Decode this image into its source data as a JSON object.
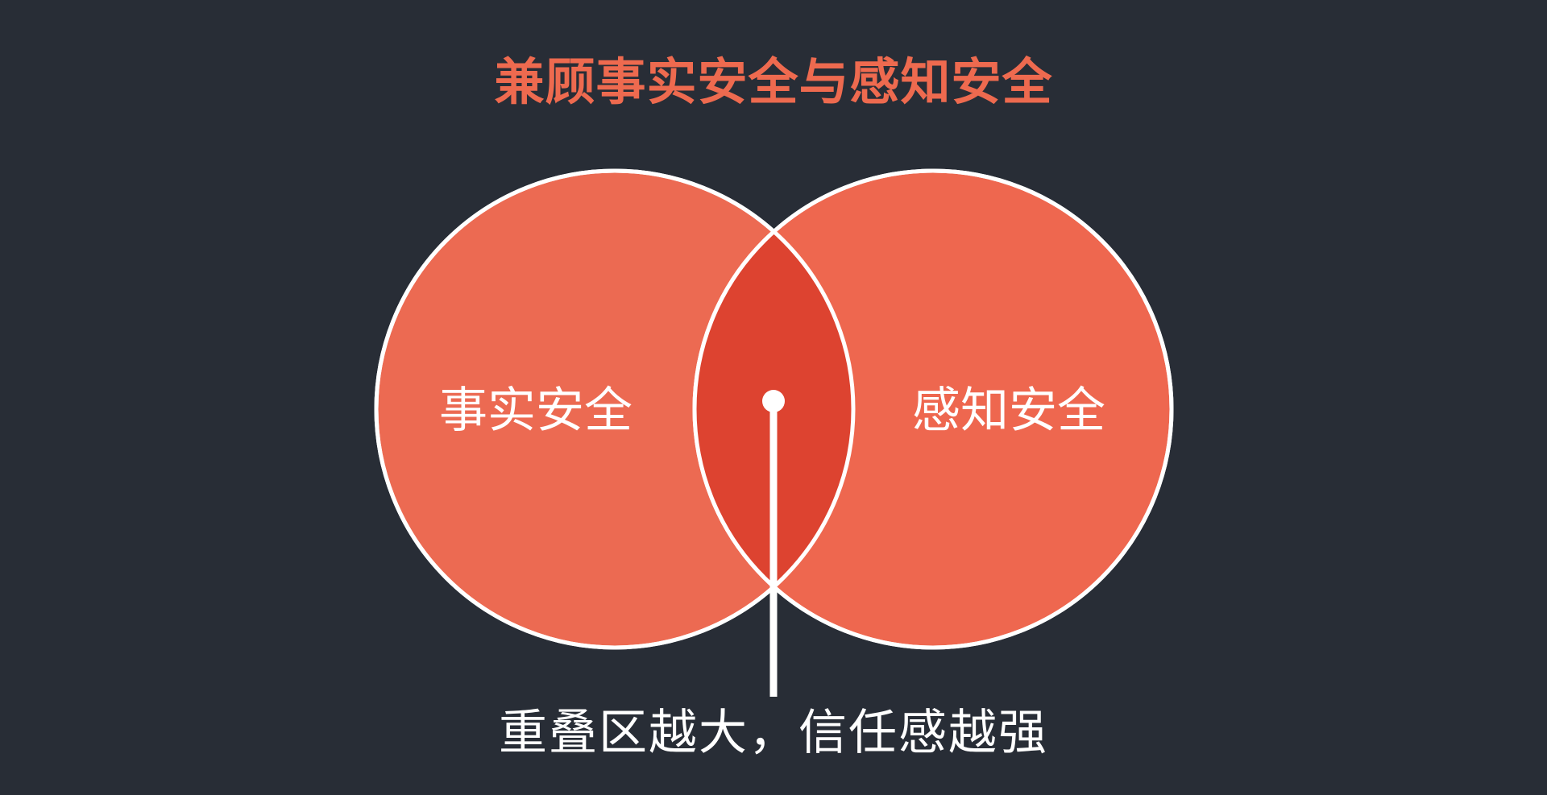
{
  "title": "兼顾事实安全与感知安全",
  "left_set": {
    "label": "事实安全"
  },
  "right_set": {
    "label": "感知安全"
  },
  "caption": "重叠区越大，信任感越强",
  "colors": {
    "background": "#282d36",
    "title": "#ee6a4f",
    "left_circle": "#ec6a52",
    "right_circle": "#ee674f",
    "overlap": "#dd4330",
    "outline": "#ffffff",
    "text": "#ffffff"
  }
}
